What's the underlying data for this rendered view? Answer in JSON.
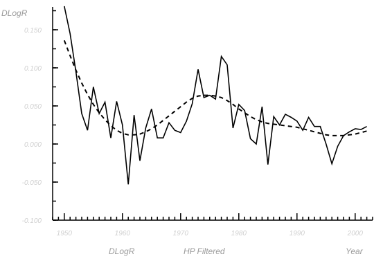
{
  "chart_data": {
    "type": "line",
    "title": "DLogR",
    "xlabel": "Year",
    "ylabel": "",
    "xlim": [
      1948,
      2003
    ],
    "ylim": [
      -0.1,
      0.18
    ],
    "x_ticks": [
      1950,
      1960,
      1970,
      1980,
      1990,
      2000
    ],
    "x_tick_labels": [
      "1950",
      "1960",
      "1970",
      "1980",
      "1990",
      "2000"
    ],
    "y_ticks": [
      -0.1,
      -0.05,
      0.0,
      0.05,
      0.1,
      0.15
    ],
    "y_tick_labels": [
      "-0.100",
      "-0.050",
      "0.000",
      "0.050",
      "0.100",
      "0.150"
    ],
    "legend": {
      "placement": "bottom"
    },
    "series": [
      {
        "name": "DLogR",
        "style": "solid",
        "x": [
          1950,
          1951,
          1952,
          1953,
          1954,
          1955,
          1956,
          1957,
          1958,
          1959,
          1960,
          1961,
          1962,
          1963,
          1964,
          1965,
          1966,
          1967,
          1968,
          1969,
          1970,
          1971,
          1972,
          1973,
          1974,
          1975,
          1976,
          1977,
          1978,
          1979,
          1980,
          1981,
          1982,
          1983,
          1984,
          1985,
          1986,
          1987,
          1988,
          1989,
          1990,
          1991,
          1992,
          1993,
          1994,
          1995,
          1996,
          1997,
          1998,
          1999,
          2000,
          2001,
          2002
        ],
        "values": [
          0.181,
          0.145,
          0.095,
          0.04,
          0.018,
          0.075,
          0.04,
          0.055,
          0.008,
          0.056,
          0.025,
          -0.053,
          0.038,
          -0.022,
          0.021,
          0.046,
          0.008,
          0.008,
          0.028,
          0.018,
          0.015,
          0.03,
          0.053,
          0.098,
          0.061,
          0.064,
          0.059,
          0.115,
          0.104,
          0.021,
          0.052,
          0.044,
          0.007,
          0.0,
          0.049,
          -0.027,
          0.036,
          0.025,
          0.039,
          0.035,
          0.03,
          0.018,
          0.035,
          0.023,
          0.023,
          0.0,
          -0.026,
          -0.003,
          0.011,
          0.016,
          0.02,
          0.019,
          0.023
        ]
      },
      {
        "name": "HP Filtered",
        "style": "dashed",
        "x": [
          1950,
          1951,
          1952,
          1953,
          1954,
          1955,
          1956,
          1957,
          1958,
          1959,
          1960,
          1961,
          1962,
          1963,
          1964,
          1965,
          1966,
          1967,
          1968,
          1969,
          1970,
          1971,
          1972,
          1973,
          1974,
          1975,
          1976,
          1977,
          1978,
          1979,
          1980,
          1981,
          1982,
          1983,
          1984,
          1985,
          1986,
          1987,
          1988,
          1989,
          1990,
          1991,
          1992,
          1993,
          1994,
          1995,
          1996,
          1997,
          1998,
          1999,
          2000,
          2001,
          2002
        ],
        "values": [
          0.136,
          0.116,
          0.097,
          0.08,
          0.065,
          0.052,
          0.041,
          0.032,
          0.024,
          0.018,
          0.014,
          0.012,
          0.012,
          0.013,
          0.016,
          0.02,
          0.025,
          0.031,
          0.037,
          0.043,
          0.049,
          0.055,
          0.06,
          0.063,
          0.064,
          0.064,
          0.063,
          0.061,
          0.057,
          0.052,
          0.046,
          0.041,
          0.036,
          0.032,
          0.029,
          0.027,
          0.026,
          0.025,
          0.024,
          0.023,
          0.022,
          0.02,
          0.018,
          0.016,
          0.014,
          0.012,
          0.011,
          0.011,
          0.011,
          0.012,
          0.013,
          0.015,
          0.017
        ]
      }
    ],
    "legend_labels": [
      "DLogR",
      "HP Filtered",
      "Year"
    ]
  }
}
